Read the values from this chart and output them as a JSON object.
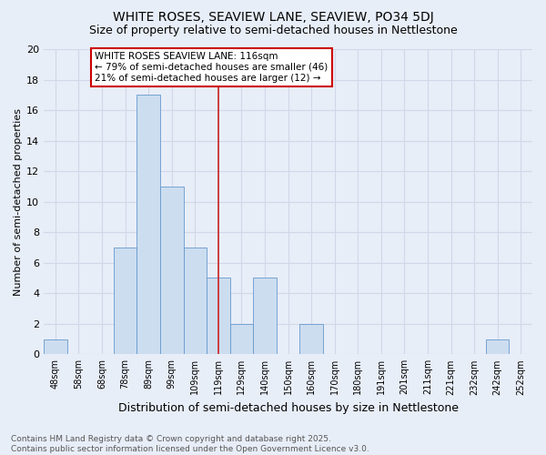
{
  "title": "WHITE ROSES, SEAVIEW LANE, SEAVIEW, PO34 5DJ",
  "subtitle": "Size of property relative to semi-detached houses in Nettlestone",
  "xlabel": "Distribution of semi-detached houses by size in Nettlestone",
  "ylabel": "Number of semi-detached properties",
  "bar_labels": [
    "48sqm",
    "58sqm",
    "68sqm",
    "78sqm",
    "89sqm",
    "99sqm",
    "109sqm",
    "119sqm",
    "129sqm",
    "140sqm",
    "150sqm",
    "160sqm",
    "170sqm",
    "180sqm",
    "191sqm",
    "201sqm",
    "211sqm",
    "221sqm",
    "232sqm",
    "242sqm",
    "252sqm"
  ],
  "bar_values": [
    1,
    0,
    0,
    7,
    17,
    11,
    7,
    5,
    2,
    5,
    0,
    2,
    0,
    0,
    0,
    0,
    0,
    0,
    0,
    1,
    0
  ],
  "bar_color": "#ccddf0",
  "bar_edge_color": "#6699cc",
  "red_line_x": 7.0,
  "annotation_text": "WHITE ROSES SEAVIEW LANE: 116sqm\n← 79% of semi-detached houses are smaller (46)\n21% of semi-detached houses are larger (12) →",
  "annotation_box_color": "#ffffff",
  "annotation_box_edge": "#cc0000",
  "ylim": [
    0,
    20
  ],
  "yticks": [
    0,
    2,
    4,
    6,
    8,
    10,
    12,
    14,
    16,
    18,
    20
  ],
  "footnote": "Contains HM Land Registry data © Crown copyright and database right 2025.\nContains public sector information licensed under the Open Government Licence v3.0.",
  "bg_color": "#e8eef8",
  "plot_bg_color": "#e8eef8",
  "grid_color": "#d0d8e8",
  "title_fontsize": 10,
  "subtitle_fontsize": 9,
  "tick_fontsize": 7,
  "ylabel_fontsize": 8,
  "xlabel_fontsize": 9,
  "annotation_fontsize": 7.5,
  "footnote_fontsize": 6.5
}
